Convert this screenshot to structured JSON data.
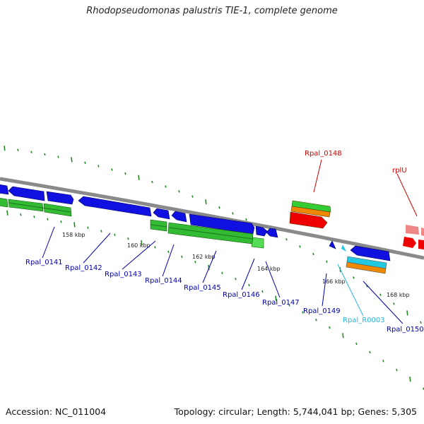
{
  "title": "Rhodopseudomonas palustris TIE-1, complete genome",
  "footer": {
    "accession": "Accession: NC_011004",
    "topology": "Topology: circular; Length: 5,744,041 bp; Genes: 5,305"
  },
  "colors": {
    "backbone": "#8a8a8a",
    "gene_blue": "#1010e0",
    "gene_green": "#33bb33",
    "gene_orange": "#ee8800",
    "gene_red": "#ee0000",
    "gene_cyan": "#22c8e0",
    "gene_pink": "#ee8888",
    "tick_green": "#228822",
    "label_blue": "#0000aa",
    "label_red": "#cc0000",
    "label_cyan": "#22b8dd"
  },
  "scale_ticks": [
    {
      "label": "158 kbp"
    },
    {
      "label": "160 kbp"
    },
    {
      "label": "162 kbp"
    },
    {
      "label": "164 kbp"
    },
    {
      "label": "166 kbp"
    },
    {
      "label": "168 kbp"
    }
  ],
  "gene_labels": [
    {
      "label": "Rpal_0141",
      "color": "blue"
    },
    {
      "label": "Rpal_0142",
      "color": "blue"
    },
    {
      "label": "Rpal_0143",
      "color": "blue"
    },
    {
      "label": "Rpal_0144",
      "color": "blue"
    },
    {
      "label": "Rpal_0145",
      "color": "blue"
    },
    {
      "label": "Rpal_0146",
      "color": "blue"
    },
    {
      "label": "Rpal_0147",
      "color": "blue"
    },
    {
      "label": "Rpal_0149",
      "color": "blue"
    },
    {
      "label": "Rpal_R0003",
      "color": "cyan"
    },
    {
      "label": "Rpal_0150",
      "color": "blue"
    },
    {
      "label": "Rpal_0148",
      "color": "red"
    },
    {
      "label": "rplU",
      "color": "red"
    }
  ]
}
